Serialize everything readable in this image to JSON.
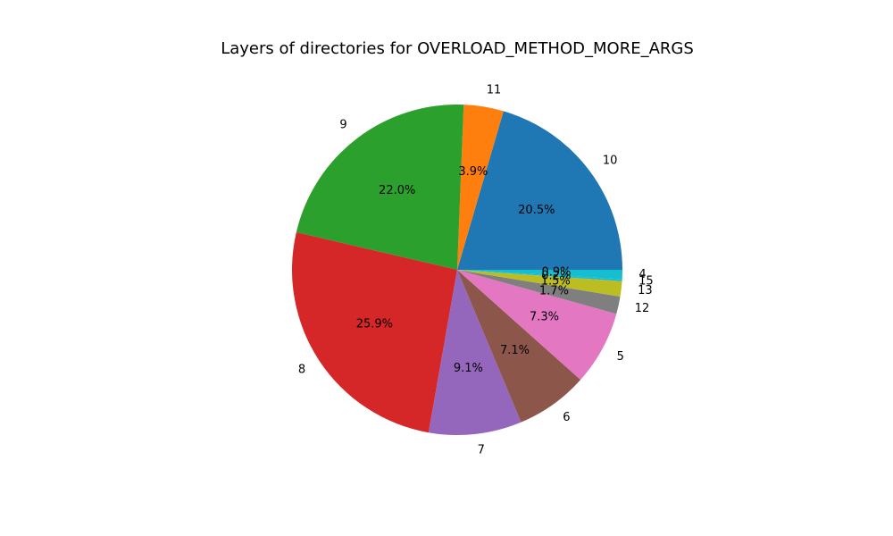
{
  "chart_data": {
    "type": "pie",
    "title": "Layers of directories for OVERLOAD_METHOD_MORE_ARGS",
    "start_angle_deg": 0,
    "direction": "counterclockwise",
    "slices": [
      {
        "label": "10",
        "pct_label": "20.5%",
        "value": 20.5,
        "color": "#1f77b4"
      },
      {
        "label": "11",
        "pct_label": "3.9%",
        "value": 3.9,
        "color": "#ff7f0e"
      },
      {
        "label": "9",
        "pct_label": "22.0%",
        "value": 22.0,
        "color": "#2ca02c"
      },
      {
        "label": "8",
        "pct_label": "25.9%",
        "value": 25.9,
        "color": "#d62728"
      },
      {
        "label": "7",
        "pct_label": "9.1%",
        "value": 9.1,
        "color": "#9467bd"
      },
      {
        "label": "6",
        "pct_label": "7.1%",
        "value": 7.1,
        "color": "#8c564b"
      },
      {
        "label": "5",
        "pct_label": "7.3%",
        "value": 7.3,
        "color": "#e377c2"
      },
      {
        "label": "12",
        "pct_label": "1.7%",
        "value": 1.7,
        "color": "#7f7f7f"
      },
      {
        "label": "13",
        "pct_label": "1.5%",
        "value": 1.5,
        "color": "#bcbd22"
      },
      {
        "label": "15",
        "pct_label": "0.2%",
        "value": 0.2,
        "color": "#17becf"
      },
      {
        "label": "4",
        "pct_label": "0.9%",
        "value": 0.9,
        "color": "#17becf"
      }
    ]
  }
}
